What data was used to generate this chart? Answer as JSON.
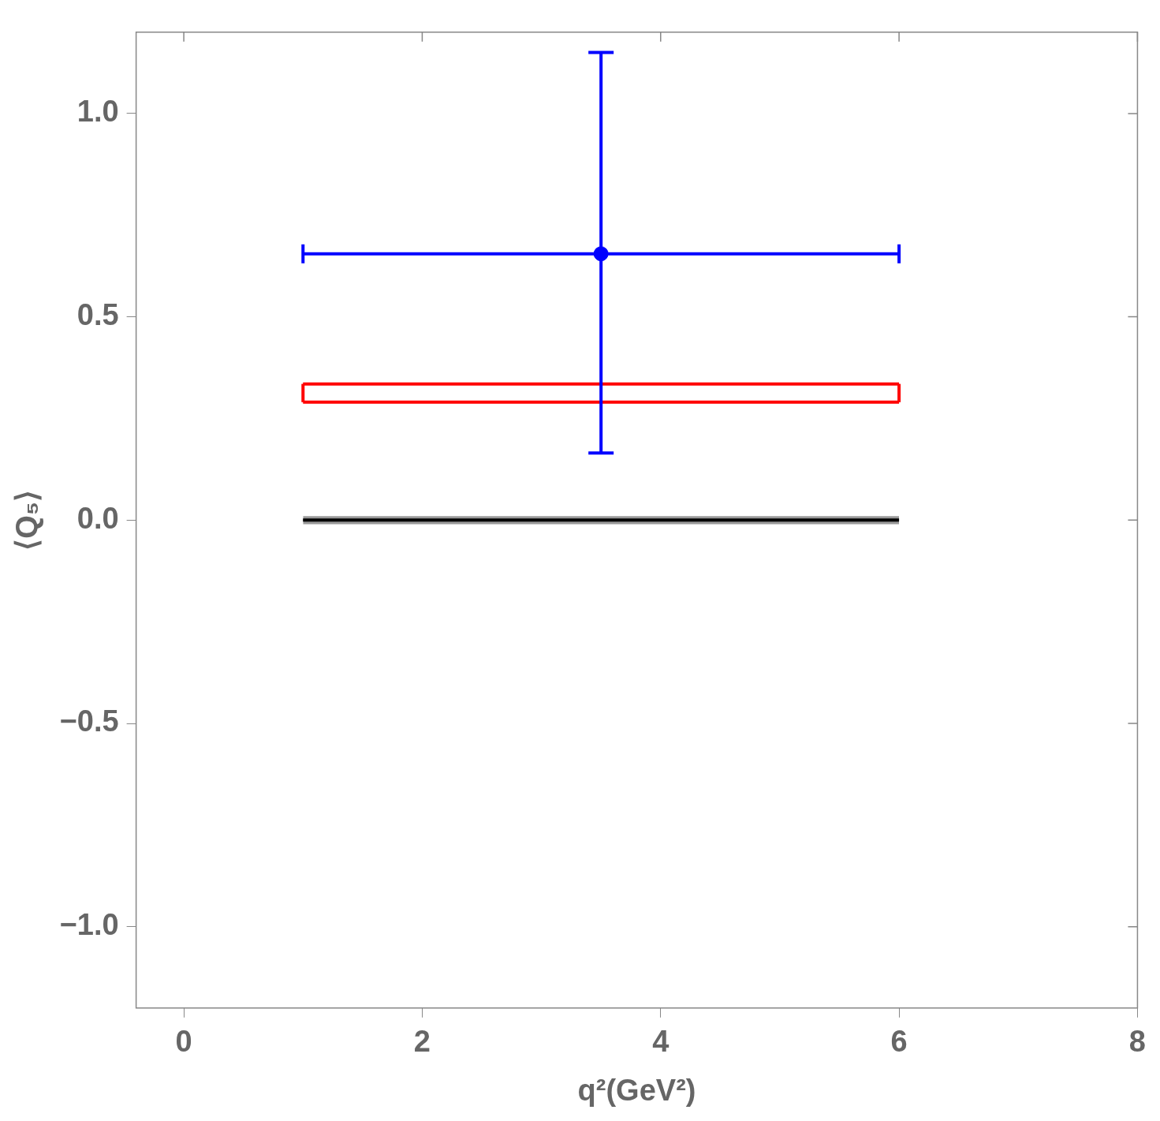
{
  "chart_data": {
    "type": "scatter",
    "xlabel": "q²(GeV²)",
    "ylabel": "⟨Q₅⟩",
    "xlim": [
      -0.4,
      8
    ],
    "ylim": [
      -1.2,
      1.2
    ],
    "xticks": [
      0,
      2,
      4,
      6,
      8
    ],
    "yticks": [
      {
        "value": -1,
        "label": "−1.0"
      },
      {
        "value": -0.5,
        "label": "−0.5"
      },
      {
        "value": 0,
        "label": "0.0"
      },
      {
        "value": 0.5,
        "label": "0.5"
      },
      {
        "value": 1,
        "label": "1.0"
      }
    ],
    "grid": false,
    "legend": false,
    "series": [
      {
        "type": "line",
        "color": "#000000",
        "x": [
          1,
          6
        ],
        "values": [
          0,
          0
        ],
        "lower": [
          -0.01,
          -0.01
        ],
        "upper": [
          0.01,
          0.01
        ]
      },
      {
        "type": "line",
        "color": "#ff0000",
        "x": [
          1,
          6
        ],
        "values": [
          0.335,
          0.335
        ]
      },
      {
        "type": "line",
        "color": "#ff0000",
        "x": [
          1,
          6
        ],
        "values": [
          0.29,
          0.29
        ]
      },
      {
        "type": "line",
        "color": "#ff0000",
        "x": [
          1,
          1
        ],
        "values": [
          0.29,
          0.335
        ]
      },
      {
        "type": "line",
        "color": "#ff0000",
        "x": [
          6,
          6
        ],
        "values": [
          0.29,
          0.335
        ]
      },
      {
        "color": "#0000ff",
        "x": [
          3.5
        ],
        "values": [
          0.655
        ],
        "errors": [
          [
            0.165,
            1.15
          ]
        ],
        "xerrors": [
          [
            1,
            6
          ]
        ],
        "marker": "circle"
      }
    ]
  }
}
